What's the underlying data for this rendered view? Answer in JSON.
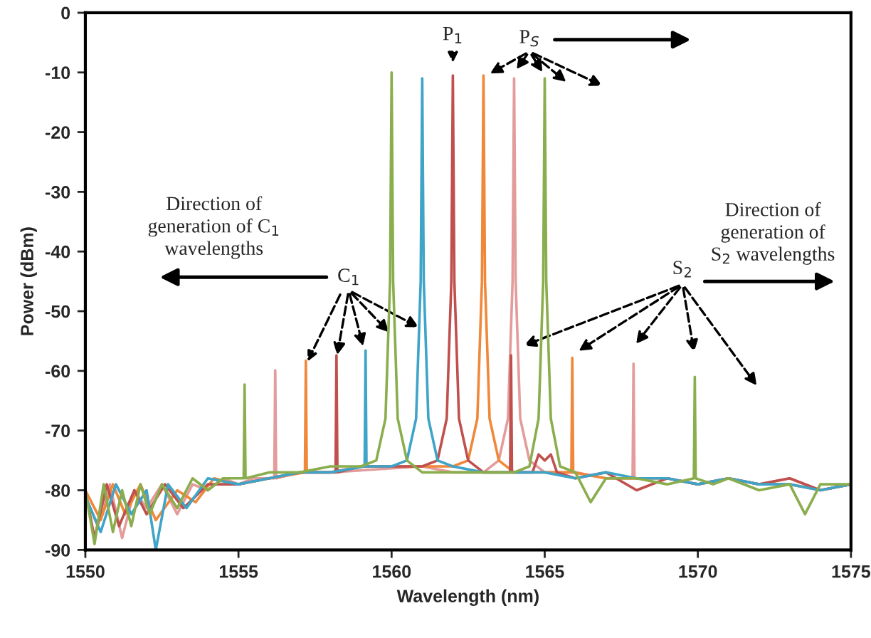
{
  "chart_data": {
    "type": "line",
    "xlabel": "Wavelength (nm)",
    "ylabel": "Power (dBm)",
    "xlim": [
      1550,
      1575
    ],
    "ylim": [
      -90,
      0
    ],
    "xticks": [
      1550,
      1555,
      1560,
      1565,
      1570,
      1575
    ],
    "yticks": [
      -90,
      -80,
      -70,
      -60,
      -50,
      -40,
      -30,
      -20,
      -10,
      0
    ],
    "grid": false,
    "legend": false,
    "series": [
      {
        "color": "#e39b9b",
        "x": [
          1550,
          1550.4,
          1550.8,
          1551.2,
          1551.6,
          1552,
          1552.5,
          1553,
          1553.5,
          1554,
          1554.5,
          1555,
          1555.5,
          1556.17,
          1556.2,
          1556.23,
          1557,
          1558,
          1561,
          1562,
          1563,
          1563.5,
          1563.8,
          1563.95,
          1564,
          1564.05,
          1564.2,
          1564.5,
          1565,
          1566,
          1567,
          1567.87,
          1567.9,
          1567.93,
          1569,
          1570,
          1571,
          1572,
          1573,
          1574,
          1575
        ],
        "values": [
          -81,
          -86,
          -79,
          -88,
          -80,
          -83,
          -79,
          -84,
          -79,
          -80,
          -78,
          -79,
          -78,
          -78,
          -59.9,
          -78,
          -77,
          -77,
          -76,
          -77,
          -77,
          -75,
          -68,
          -45,
          -11,
          -45,
          -68,
          -75,
          -77,
          -77,
          -78,
          -78,
          -58.8,
          -78,
          -78,
          -79,
          -78,
          -79,
          -78,
          -80,
          -79
        ]
      },
      {
        "color": "#f0883a",
        "x": [
          1550,
          1550.5,
          1550.9,
          1551.3,
          1551.8,
          1552.3,
          1553,
          1553.6,
          1554.2,
          1555,
          1556,
          1557.17,
          1557.2,
          1557.23,
          1558,
          1559,
          1560,
          1561,
          1562,
          1562.5,
          1562.8,
          1562.95,
          1563,
          1563.05,
          1563.2,
          1563.5,
          1564,
          1565,
          1565.87,
          1565.9,
          1565.93,
          1567,
          1568,
          1569,
          1570,
          1571,
          1572,
          1573,
          1574,
          1575
        ],
        "values": [
          -80,
          -85,
          -79,
          -84,
          -79,
          -85,
          -80,
          -82,
          -78,
          -79,
          -78,
          -77,
          -58.3,
          -77,
          -77,
          -76,
          -76,
          -76,
          -76,
          -75,
          -68,
          -45,
          -10.5,
          -45,
          -68,
          -75,
          -77,
          -77,
          -77,
          -57.8,
          -77,
          -78,
          -78,
          -78,
          -79,
          -78,
          -79,
          -79,
          -80,
          -79
        ]
      },
      {
        "color": "#c0504d",
        "x": [
          1550,
          1550.3,
          1550.7,
          1551.1,
          1551.6,
          1552,
          1552.6,
          1553.2,
          1554,
          1555,
          1556,
          1557,
          1558.17,
          1558.2,
          1558.23,
          1559,
          1560,
          1561,
          1561.5,
          1561.8,
          1561.95,
          1562,
          1562.05,
          1562.2,
          1562.5,
          1563,
          1563.87,
          1563.9,
          1563.93,
          1564.6,
          1564.8,
          1565,
          1565.2,
          1565.4,
          1566,
          1567,
          1568,
          1569,
          1570,
          1571,
          1572,
          1573,
          1574,
          1575
        ],
        "values": [
          -80,
          -88,
          -79,
          -86,
          -80,
          -84,
          -79,
          -83,
          -79,
          -79,
          -78,
          -77,
          -77,
          -57.4,
          -77,
          -76,
          -76,
          -76,
          -75,
          -68,
          -45,
          -10.5,
          -45,
          -68,
          -75,
          -77,
          -77,
          -57.4,
          -77,
          -77,
          -74,
          -75,
          -74,
          -77,
          -78,
          -77,
          -80,
          -78,
          -79,
          -78,
          -79,
          -78,
          -80,
          -79
        ]
      },
      {
        "color": "#3ea4c8",
        "x": [
          1550,
          1550.5,
          1551,
          1551.5,
          1552,
          1552.3,
          1552.7,
          1553.3,
          1554,
          1555,
          1556,
          1557,
          1558,
          1559.12,
          1559.15,
          1559.18,
          1560,
          1560.5,
          1560.8,
          1560.95,
          1561,
          1561.05,
          1561.2,
          1561.5,
          1562,
          1563,
          1564,
          1565,
          1566,
          1567,
          1568,
          1569,
          1570,
          1571,
          1572,
          1573,
          1574,
          1575
        ],
        "values": [
          -81,
          -87,
          -79,
          -84,
          -80,
          -90,
          -79,
          -83,
          -78,
          -79,
          -78,
          -77,
          -77,
          -76,
          -56.6,
          -76,
          -76,
          -75,
          -68,
          -45,
          -11,
          -45,
          -68,
          -75,
          -76,
          -77,
          -77,
          -77,
          -78,
          -77,
          -78,
          -78,
          -79,
          -78,
          -79,
          -79,
          -80,
          -79
        ]
      },
      {
        "color": "#8aad4d",
        "x": [
          1550,
          1550.3,
          1550.6,
          1550.9,
          1551.2,
          1551.5,
          1551.8,
          1552.1,
          1552.5,
          1553,
          1553.5,
          1554,
          1554.5,
          1555.17,
          1555.2,
          1555.23,
          1556,
          1557,
          1558,
          1559,
          1559.5,
          1559.8,
          1559.95,
          1560,
          1560.05,
          1560.2,
          1560.5,
          1561,
          1562,
          1563,
          1564,
          1564.5,
          1564.8,
          1564.95,
          1565,
          1565.05,
          1565.2,
          1565.5,
          1566,
          1566.5,
          1567,
          1568,
          1569,
          1569.87,
          1569.9,
          1569.93,
          1570.5,
          1571,
          1572,
          1573,
          1573.5,
          1574,
          1575
        ],
        "values": [
          -80,
          -89,
          -79,
          -87,
          -80,
          -86,
          -79,
          -84,
          -79,
          -83,
          -78,
          -80,
          -78,
          -78,
          -62.3,
          -78,
          -77,
          -77,
          -76,
          -76,
          -75,
          -68,
          -45,
          -10,
          -45,
          -68,
          -75,
          -77,
          -77,
          -77,
          -77,
          -76,
          -68,
          -45,
          -11,
          -45,
          -68,
          -76,
          -77,
          -82,
          -78,
          -78,
          -79,
          -78,
          -61,
          -78,
          -79,
          -78,
          -80,
          -79,
          -84,
          -79,
          -79
        ]
      }
    ],
    "annotations": [
      {
        "text": "P$_{1}$",
        "x": 1562,
        "y": -10.5
      },
      "P$_{S}$",
      {
        "text": "C$_{1}$",
        "x": 1557.2,
        "y": -58.3
      },
      "S$_{2}$",
      "Direction of\ngeneration of C$_{1}$\nwavelengths",
      "Direction of\ngeneration of\nS$_{2}$ wavelengths"
    ]
  }
}
